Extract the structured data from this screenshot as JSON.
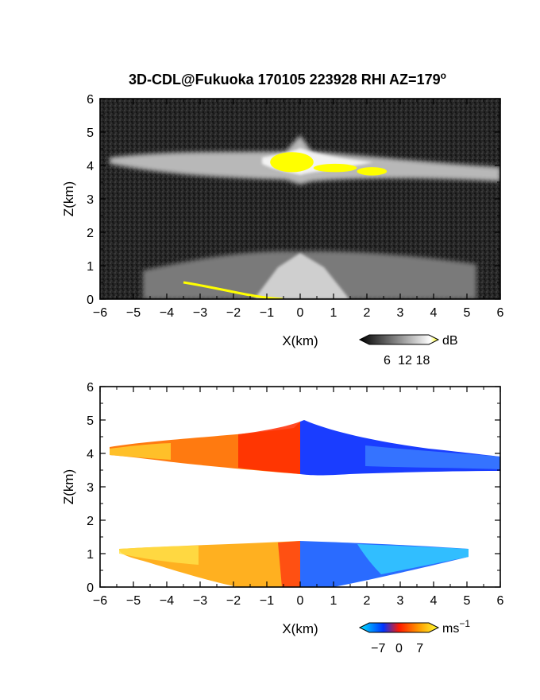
{
  "title_main": "3D-CDL@Fukuoka 170105 223928 RHI AZ=179",
  "title_sup": "o",
  "chart_data": [
    {
      "type": "heatmap",
      "panel": "top",
      "xlabel": "X(km)",
      "ylabel": "Z(km)",
      "xlim": [
        -6,
        6
      ],
      "ylim": [
        0,
        6
      ],
      "xticks": [
        -6,
        -5,
        -4,
        -3,
        -2,
        -1,
        0,
        1,
        2,
        3,
        4,
        5,
        6
      ],
      "yticks": [
        0,
        1,
        2,
        3,
        4,
        5,
        6
      ],
      "colorbar": {
        "unit": "dB",
        "unit_sup": "",
        "ticks": [
          6,
          12,
          18
        ],
        "range": [
          0,
          20
        ],
        "colors": [
          "#000000",
          "#ffffff",
          "#ffff00"
        ]
      },
      "background": "#1c1c1c",
      "layers": [
        {
          "name": "upper cloud layer",
          "x": [
            -5.8,
            6.0
          ],
          "z_center": 4.0,
          "z_halfwidth": 0.25,
          "peak_x": 0.1,
          "peak_z": 4.5
        },
        {
          "name": "lower aerosol layer",
          "x": [
            -4.5,
            5.5
          ],
          "z_top": 1.2,
          "z_bottom": 0.0
        }
      ],
      "saturated_regions": [
        {
          "x": [
            -0.9,
            0.4
          ],
          "z": [
            3.8,
            4.4
          ]
        },
        {
          "x": [
            0.4,
            1.7
          ],
          "z": [
            3.8,
            4.05
          ]
        },
        {
          "x": [
            1.7,
            2.6
          ],
          "z": [
            3.7,
            3.95
          ]
        },
        {
          "x": [
            -3.5,
            -1.0
          ],
          "z": [
            0.0,
            0.5
          ]
        }
      ]
    },
    {
      "type": "heatmap",
      "panel": "bottom",
      "xlabel": "X(km)",
      "ylabel": "Z(km)",
      "xlim": [
        -6,
        6
      ],
      "ylim": [
        0,
        6
      ],
      "xticks": [
        -6,
        -5,
        -4,
        -3,
        -2,
        -1,
        0,
        1,
        2,
        3,
        4,
        5,
        6
      ],
      "yticks": [
        0,
        1,
        2,
        3,
        4,
        5,
        6
      ],
      "colorbar": {
        "unit": "ms",
        "unit_sup": "−1",
        "ticks": [
          "−7",
          "0",
          "7"
        ],
        "range": [
          -10,
          10
        ],
        "colors": [
          "#00e5ff",
          "#0033ff",
          "#ff1a00",
          "#ffff33"
        ]
      },
      "background": "#ffffff",
      "layers": [
        {
          "name": "upper layer",
          "x": [
            -5.6,
            6.0
          ],
          "z_center": 4.05,
          "z_halfwidth": 0.27,
          "velocity_left": 5.0,
          "velocity_right": -5.0,
          "peak_x": 0.1,
          "peak_z": 4.9
        },
        {
          "name": "lower layer",
          "x": [
            -5.4,
            5.0
          ],
          "z_top": 1.25,
          "z_bottom": 0.0,
          "velocity_left": 5.5,
          "velocity_right": -4.5
        }
      ]
    }
  ]
}
